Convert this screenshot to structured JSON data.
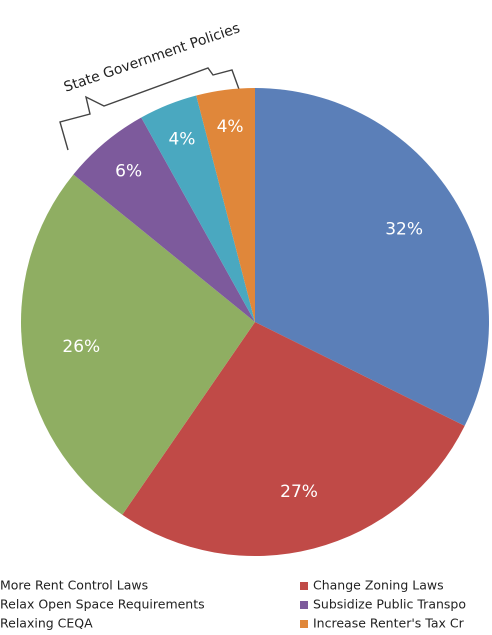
{
  "chart_data": {
    "type": "pie",
    "annotation": "State Government Policies",
    "categories": [
      "More Rent Control Laws",
      "Change Zoning Laws",
      "Relax Open Space Requirements",
      "Subsidize Public Transpo",
      "Relaxing CEQA",
      "Increase Renter's Tax Cr"
    ],
    "values": [
      32,
      27,
      26,
      6,
      4,
      4
    ],
    "value_labels": [
      "32%",
      "27%",
      "26%",
      "6%",
      "4%",
      "4%"
    ],
    "colors": [
      "#5b7fb8",
      "#c04a47",
      "#8fae62",
      "#7d5a9c",
      "#4aa8c0",
      "#e0873a"
    ]
  }
}
